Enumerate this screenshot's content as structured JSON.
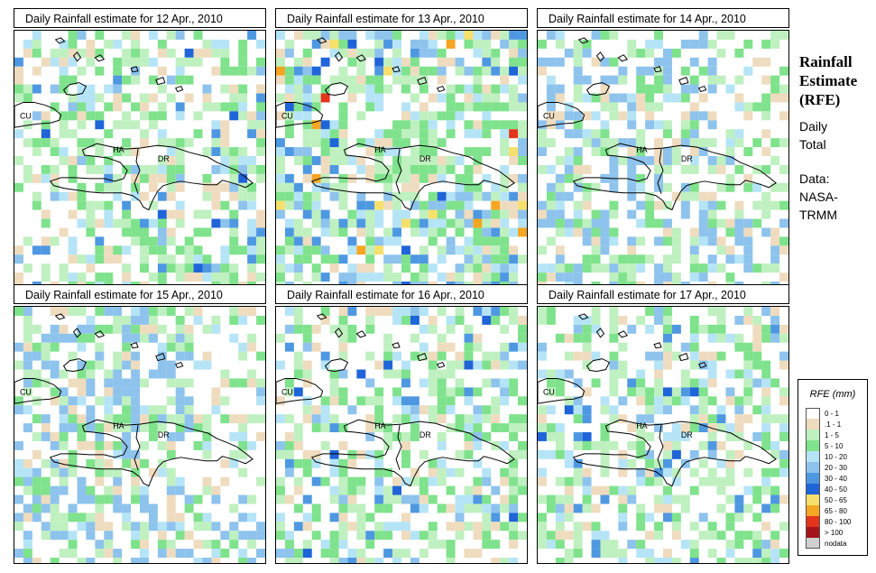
{
  "panels": [
    {
      "title": "Daily Rainfall estimate for  12 Apr., 2010",
      "intensity": "moderate"
    },
    {
      "title": "Daily Rainfall estimate for  13 Apr., 2010",
      "intensity": "heavy"
    },
    {
      "title": "Daily Rainfall estimate for  14 Apr., 2010",
      "intensity": "light"
    },
    {
      "title": "Daily Rainfall estimate for  15 Apr., 2010",
      "intensity": "light"
    },
    {
      "title": "Daily Rainfall estimate for  16 Apr., 2010",
      "intensity": "moderate"
    },
    {
      "title": "Daily Rainfall estimate for  17 Apr., 2010",
      "intensity": "moderate"
    }
  ],
  "map_labels": {
    "cuba": "CU",
    "haiti": "HA",
    "dominican_republic": "DR"
  },
  "sidebar": {
    "title_line1": "Rainfall",
    "title_line2": "Estimate",
    "title_line3": "(RFE)",
    "daily": "Daily",
    "total": "Total",
    "data_label": "Data:",
    "source_line1": "NASA-",
    "source_line2": "TRMM"
  },
  "legend": {
    "title": "RFE (mm)",
    "items": [
      {
        "label": "0 - 1",
        "color": "#ffffff"
      },
      {
        "label": ".1 - 1",
        "color": "#efdcbf"
      },
      {
        "label": "1 - 5",
        "color": "#bff0c0"
      },
      {
        "label": "5 - 10",
        "color": "#7fe28c"
      },
      {
        "label": "10 - 20",
        "color": "#b5e4f7"
      },
      {
        "label": "20 - 30",
        "color": "#8dc3ec"
      },
      {
        "label": "30 - 40",
        "color": "#4e98e2"
      },
      {
        "label": "40 - 50",
        "color": "#1f64d8"
      },
      {
        "label": "50 - 65",
        "color": "#f7e06b"
      },
      {
        "label": "65 - 80",
        "color": "#f5a622"
      },
      {
        "label": "80 - 100",
        "color": "#e3341c"
      },
      {
        "label": "> 100",
        "color": "#a4141a"
      },
      {
        "label": "nodata",
        "color": "#cfcfcf"
      }
    ]
  }
}
